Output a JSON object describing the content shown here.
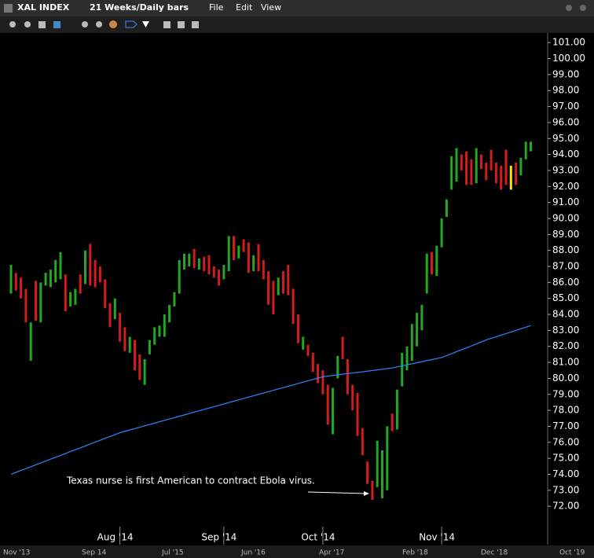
{
  "ui": {
    "symbol": "XAL INDEX",
    "period": "21 Weeks/Daily bars",
    "menu": [
      "File",
      "Edit",
      "View"
    ],
    "navigator": [
      "Nov '13",
      "Sep 14",
      "Jul '15",
      "Jun '16",
      "Apr '17",
      "Feb '18",
      "Dec '18",
      "Oct '19"
    ]
  },
  "chart_data": {
    "type": "range-bar",
    "annotation": "Texas nurse is first American to contract Ebola virus.",
    "categories": [
      null,
      null,
      null,
      null,
      null,
      null,
      null,
      null,
      null,
      null,
      null,
      null,
      null,
      null,
      null,
      null,
      null,
      null,
      null,
      null,
      null,
      null,
      "Aug '14",
      null,
      null,
      null,
      null,
      null,
      null,
      null,
      null,
      null,
      null,
      null,
      null,
      null,
      null,
      null,
      null,
      null,
      null,
      null,
      null,
      "Sep '14",
      null,
      null,
      null,
      null,
      null,
      null,
      null,
      null,
      null,
      null,
      null,
      null,
      null,
      null,
      null,
      null,
      null,
      null,
      null,
      "Oct '14",
      null,
      null,
      null,
      null,
      null,
      null,
      null,
      null,
      null,
      null,
      null,
      null,
      null,
      null,
      null,
      null,
      null,
      null,
      null,
      null,
      null,
      null,
      null,
      "Nov '14",
      null,
      null,
      null,
      null,
      null,
      null,
      null,
      null,
      null,
      null,
      null,
      null,
      null,
      null,
      null,
      null,
      null,
      null
    ],
    "low": [
      85.3,
      85.5,
      85.0,
      83.5,
      81.1,
      83.6,
      83.5,
      85.8,
      85.7,
      86.0,
      86.2,
      84.2,
      84.5,
      84.6,
      85.3,
      85.9,
      85.8,
      85.7,
      86.0,
      84.4,
      83.2,
      83.7,
      82.3,
      81.7,
      81.6,
      80.5,
      79.9,
      79.6,
      81.5,
      82.1,
      82.6,
      82.6,
      83.5,
      84.5,
      85.3,
      86.8,
      87.0,
      86.9,
      86.8,
      86.7,
      86.5,
      86.3,
      85.8,
      86.2,
      86.7,
      87.4,
      87.5,
      87.9,
      86.6,
      86.7,
      86.7,
      86.2,
      84.6,
      84.0,
      85.2,
      85.3,
      85.2,
      83.4,
      82.2,
      81.8,
      81.4,
      80.4,
      79.7,
      79.0,
      77.1,
      76.5,
      80.0,
      81.2,
      79.0,
      78.0,
      76.4,
      75.2,
      73.4,
      72.4,
      73.2,
      72.5,
      73.0,
      76.7,
      76.8,
      79.5,
      80.5,
      81.1,
      82.0,
      83.0,
      85.3,
      86.5,
      86.4,
      88.2,
      90.1,
      91.8,
      92.3,
      93.0,
      92.1,
      92.1,
      92.2,
      93.1,
      92.4,
      93.0,
      92.2,
      91.8,
      92.1,
      91.8,
      92.1,
      92.7,
      93.7,
      94.2
    ],
    "high": [
      87.1,
      86.6,
      86.3,
      85.6,
      83.5,
      86.1,
      86.0,
      86.6,
      86.8,
      87.4,
      87.9,
      86.5,
      85.4,
      85.6,
      86.5,
      88.0,
      88.4,
      87.4,
      87.0,
      86.2,
      84.7,
      85.0,
      84.1,
      83.2,
      82.6,
      82.4,
      81.5,
      81.2,
      82.4,
      83.2,
      83.3,
      84.0,
      84.6,
      85.4,
      87.4,
      87.8,
      87.8,
      88.1,
      87.5,
      87.6,
      87.7,
      87.0,
      86.8,
      87.1,
      88.9,
      88.9,
      88.3,
      88.7,
      88.5,
      87.7,
      88.4,
      87.4,
      86.7,
      86.1,
      86.3,
      86.7,
      87.1,
      85.6,
      84.0,
      82.6,
      82.1,
      81.6,
      80.9,
      80.5,
      79.6,
      79.4,
      81.4,
      82.6,
      81.2,
      79.6,
      79.1,
      76.9,
      74.8,
      73.6,
      76.1,
      75.5,
      77.0,
      77.8,
      79.3,
      81.6,
      82.0,
      83.4,
      84.1,
      84.6,
      87.8,
      87.9,
      88.3,
      90.0,
      91.2,
      93.9,
      94.4,
      94.0,
      94.2,
      93.7,
      94.4,
      94.0,
      93.5,
      94.3,
      93.5,
      93.3,
      94.3,
      93.3,
      93.5,
      93.8,
      94.8,
      94.8
    ],
    "colors": [
      "#22a822",
      "#d41c1c",
      "#d41c1c",
      "#d41c1c",
      "#22a822",
      "#d41c1c",
      "#22a822",
      "#22a822",
      "#22a822",
      "#22a822",
      "#22a822",
      "#d41c1c",
      "#22a822",
      "#22a822",
      "#d41c1c",
      "#22a822",
      "#d41c1c",
      "#d41c1c",
      "#d41c1c",
      "#d41c1c",
      "#d41c1c",
      "#22a822",
      "#d41c1c",
      "#d41c1c",
      "#22a822",
      "#d41c1c",
      "#d41c1c",
      "#22a822",
      "#22a822",
      "#22a822",
      "#22a822",
      "#22a822",
      "#22a822",
      "#22a822",
      "#22a822",
      "#22a822",
      "#22a822",
      "#d41c1c",
      "#22a822",
      "#d41c1c",
      "#d41c1c",
      "#d41c1c",
      "#d41c1c",
      "#22a822",
      "#22a822",
      "#d41c1c",
      "#22a822",
      "#d41c1c",
      "#d41c1c",
      "#22a822",
      "#d41c1c",
      "#d41c1c",
      "#d41c1c",
      "#d41c1c",
      "#22a822",
      "#d41c1c",
      "#d41c1c",
      "#d41c1c",
      "#d41c1c",
      "#22a822",
      "#d41c1c",
      "#d41c1c",
      "#d41c1c",
      "#d41c1c",
      "#d41c1c",
      "#22a822",
      "#22a822",
      "#d41c1c",
      "#d41c1c",
      "#d41c1c",
      "#d41c1c",
      "#d41c1c",
      "#d41c1c",
      "#d41c1c",
      "#22a822",
      "#22a822",
      "#22a822",
      "#d41c1c",
      "#22a822",
      "#22a822",
      "#22a822",
      "#22a822",
      "#22a822",
      "#22a822",
      "#22a822",
      "#d41c1c",
      "#22a822",
      "#22a822",
      "#22a822",
      "#22a822",
      "#22a822",
      "#d41c1c",
      "#d41c1c",
      "#d41c1c",
      "#22a822",
      "#d41c1c",
      "#d41c1c",
      "#d41c1c",
      "#d41c1c",
      "#d41c1c",
      "#d41c1c",
      "#ffe000",
      "#d41c1c",
      "#22a822",
      "#22a822",
      "#22a822"
    ],
    "overlay": {
      "type": "line",
      "color": "#2e86ff",
      "values": [
        74.0,
        74.12,
        74.24,
        74.35,
        74.47,
        74.59,
        74.71,
        74.83,
        74.95,
        75.06,
        75.18,
        75.3,
        75.42,
        75.54,
        75.65,
        75.77,
        75.89,
        76.01,
        76.13,
        76.25,
        76.36,
        76.48,
        76.6,
        76.69,
        76.77,
        76.86,
        76.94,
        77.03,
        77.11,
        77.2,
        77.29,
        77.37,
        77.46,
        77.54,
        77.63,
        77.71,
        77.8,
        77.89,
        77.97,
        78.06,
        78.14,
        78.23,
        78.31,
        78.4,
        78.49,
        78.57,
        78.66,
        78.74,
        78.83,
        78.91,
        79.0,
        79.08,
        79.17,
        79.25,
        79.34,
        79.42,
        79.51,
        79.59,
        79.68,
        79.76,
        79.85,
        79.93,
        80.02,
        80.1,
        80.14,
        80.18,
        80.22,
        80.26,
        80.3,
        80.33,
        80.37,
        80.41,
        80.45,
        80.49,
        80.53,
        80.57,
        80.61,
        80.65,
        80.72,
        80.78,
        80.85,
        80.91,
        80.98,
        81.04,
        81.11,
        81.17,
        81.24,
        81.3,
        81.42,
        81.54,
        81.67,
        81.79,
        81.91,
        82.03,
        82.15,
        82.28,
        82.4,
        82.5,
        82.6,
        82.7,
        82.8,
        82.9,
        83.0,
        83.1,
        83.2,
        83.3
      ]
    },
    "ylim": [
      69.6,
      101.6
    ],
    "yticks": [
      {
        "value": 72,
        "label": "72.00"
      },
      {
        "value": 73,
        "label": "73.00"
      },
      {
        "value": 74,
        "label": "74.00"
      },
      {
        "value": 75,
        "label": "75.00"
      },
      {
        "value": 76,
        "label": "76.00"
      },
      {
        "value": 77,
        "label": "77.00"
      },
      {
        "value": 78,
        "label": "78.00"
      },
      {
        "value": 79,
        "label": "79.00"
      },
      {
        "value": 80,
        "label": "80.00"
      },
      {
        "value": 81,
        "label": "81.00"
      },
      {
        "value": 82,
        "label": "82.00"
      },
      {
        "value": 83,
        "label": "83.00"
      },
      {
        "value": 84,
        "label": "84.00"
      },
      {
        "value": 85,
        "label": "85.00"
      },
      {
        "value": 86,
        "label": "86.00"
      },
      {
        "value": 87,
        "label": "87.00"
      },
      {
        "value": 88,
        "label": "88.00"
      },
      {
        "value": 89,
        "label": "89.00"
      },
      {
        "value": 90,
        "label": "90.00"
      },
      {
        "value": 91,
        "label": "91.00"
      },
      {
        "value": 92,
        "label": "92.00"
      },
      {
        "value": 93,
        "label": "93.00"
      },
      {
        "value": 94,
        "label": "94.00"
      },
      {
        "value": 95,
        "label": "95.00"
      },
      {
        "value": 96,
        "label": "96.00"
      },
      {
        "value": 97,
        "label": "97.00"
      },
      {
        "value": 98,
        "label": "98.00"
      },
      {
        "value": 99,
        "label": "99.00"
      },
      {
        "value": 100,
        "label": "100.00"
      },
      {
        "value": 101,
        "label": "101.00"
      }
    ]
  }
}
